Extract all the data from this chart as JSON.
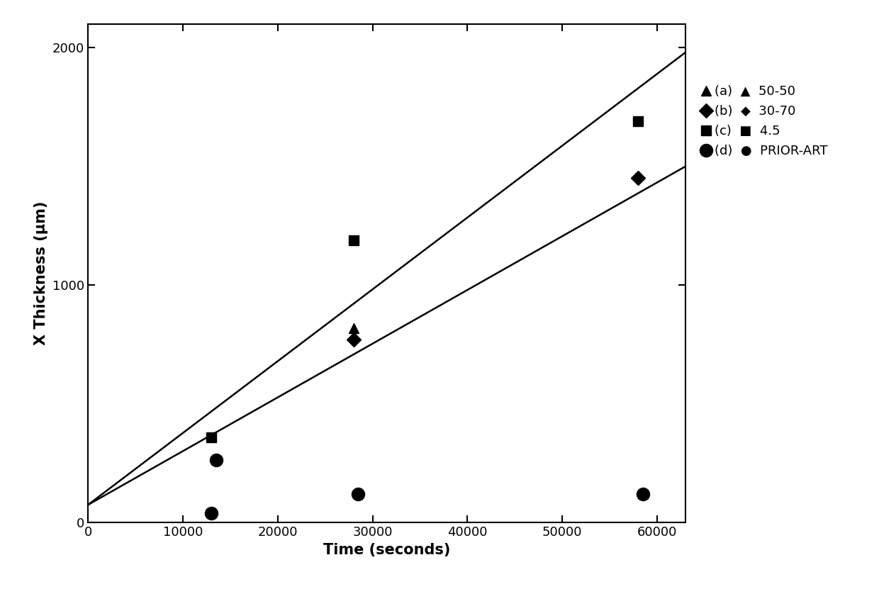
{
  "title": "",
  "xlabel": "Time (seconds)",
  "ylabel": "X Thickness (μm)",
  "xlim": [
    0,
    63000
  ],
  "ylim": [
    0,
    2100
  ],
  "xticks": [
    0,
    10000,
    20000,
    30000,
    40000,
    50000,
    60000
  ],
  "yticks": [
    0,
    1000,
    2000
  ],
  "series_a": {
    "marker": "^",
    "color": "#000000",
    "x": [
      28000
    ],
    "y": [
      820
    ]
  },
  "series_b": {
    "marker": "D",
    "color": "#000000",
    "x": [
      28000,
      58000
    ],
    "y": [
      770,
      1450
    ]
  },
  "series_c": {
    "marker": "s",
    "color": "#000000",
    "x": [
      13000,
      28000,
      58000
    ],
    "y": [
      360,
      1190,
      1690
    ]
  },
  "series_d": {
    "marker": "o",
    "color": "#000000",
    "x": [
      13000,
      13500,
      28500,
      58500
    ],
    "y": [
      40,
      265,
      120,
      120
    ]
  },
  "line1": {
    "x": [
      0,
      63000
    ],
    "y": [
      75,
      1980
    ],
    "color": "#000000",
    "linewidth": 1.8
  },
  "line2": {
    "x": [
      0,
      63000
    ],
    "y": [
      75,
      1500
    ],
    "color": "#000000",
    "linewidth": 1.8
  },
  "marker_size_small": 10,
  "marker_size_large": 13,
  "background_color": "#ffffff",
  "legend_items": [
    {
      "label": "(a)  ▲  50-50",
      "marker": "^",
      "size": 10
    },
    {
      "label": "(b)  ◆  30-70",
      "marker": "D",
      "size": 10
    },
    {
      "label": "(c)  ■  4.5",
      "marker": "s",
      "size": 10
    },
    {
      "label": "(d)  ●  PRIOR-ART",
      "marker": "o",
      "size": 13
    }
  ]
}
